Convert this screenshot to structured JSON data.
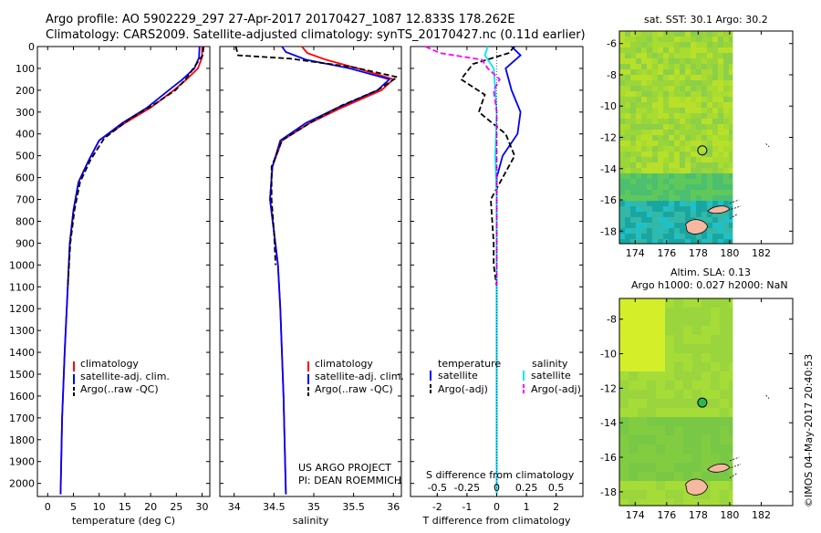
{
  "header": {
    "line1": "Argo profile: AO 5902229_297 27-Apr-2017 20170427_1087 12.833S 178.262E",
    "line2": "Climatology: CARS2009. Satellite-adjusted climatology: synTS_20170427.nc (0.11d earlier)"
  },
  "stamp": "©IMOS 04-May-2017 20:40:53",
  "colors": {
    "climatology": "#ff0000",
    "satellite": "#0000ff",
    "argo": "#000000",
    "sat_salinity": "#00e5ff",
    "argo_salinity": "#ff00ff"
  },
  "depth_ticks": [
    "0",
    "100",
    "200",
    "300",
    "400",
    "500",
    "600",
    "700",
    "800",
    "900",
    "1000",
    "1100",
    "1200",
    "1300",
    "1400",
    "1500",
    "1600",
    "1700",
    "1800",
    "1900",
    "2000"
  ],
  "chart_data": [
    {
      "type": "line",
      "xlabel": "temperature (deg C)",
      "xticks": [
        "0",
        "5",
        "10",
        "15",
        "20",
        "25",
        "30"
      ],
      "xlim": [
        -2,
        31.5
      ],
      "ylim": [
        2060,
        0
      ],
      "legend": [
        "climatology",
        "satellite-adj. clim.",
        "Argo(..raw -QC)"
      ],
      "series": [
        {
          "name": "climatology",
          "points": [
            [
              30,
              0
            ],
            [
              30,
              50
            ],
            [
              29.2,
              100
            ],
            [
              27,
              150
            ],
            [
              24.5,
              200
            ],
            [
              20,
              280
            ],
            [
              15,
              350
            ],
            [
              10,
              430
            ],
            [
              8,
              520
            ],
            [
              6,
              620
            ],
            [
              5,
              750
            ],
            [
              4.3,
              900
            ],
            [
              3.9,
              1100
            ],
            [
              3.3,
              1400
            ],
            [
              2.8,
              1700
            ],
            [
              2.5,
              2050
            ]
          ]
        },
        {
          "name": "satellite-adj. clim.",
          "points": [
            [
              29.5,
              0
            ],
            [
              29.4,
              50
            ],
            [
              28.5,
              100
            ],
            [
              26.2,
              150
            ],
            [
              23.5,
              200
            ],
            [
              19.3,
              280
            ],
            [
              14.5,
              350
            ],
            [
              10,
              430
            ],
            [
              8,
              520
            ],
            [
              6,
              620
            ],
            [
              5,
              750
            ],
            [
              4.3,
              900
            ],
            [
              3.9,
              1100
            ],
            [
              3.3,
              1400
            ],
            [
              2.8,
              1700
            ],
            [
              2.5,
              2050
            ]
          ]
        },
        {
          "name": "Argo(..raw -QC)",
          "points": [
            [
              30.3,
              0
            ],
            [
              30.1,
              40
            ],
            [
              28.3,
              100
            ],
            [
              26.8,
              150
            ],
            [
              24.8,
              200
            ],
            [
              21,
              260
            ],
            [
              16,
              330
            ],
            [
              11,
              420
            ],
            [
              8.3,
              520
            ],
            [
              6.3,
              620
            ],
            [
              5.2,
              750
            ],
            [
              4.4,
              900
            ],
            [
              3.9,
              1100
            ]
          ]
        }
      ]
    },
    {
      "type": "line",
      "xlabel": "salinity",
      "xticks": [
        "34",
        "34.5",
        "35",
        "35.5",
        "36"
      ],
      "xlim": [
        33.82,
        36.1
      ],
      "ylim": [
        2060,
        0
      ],
      "legend": [
        "climatology",
        "satellite-adj. clim.",
        "Argo(..raw -QC)"
      ],
      "annotation1": "US ARGO PROJECT",
      "annotation2": "PI: DEAN ROEMMICH",
      "series": [
        {
          "name": "climatology",
          "points": [
            [
              34.85,
              0
            ],
            [
              34.92,
              30
            ],
            [
              35.15,
              60
            ],
            [
              35.55,
              100
            ],
            [
              36.0,
              150
            ],
            [
              35.85,
              200
            ],
            [
              35.35,
              280
            ],
            [
              34.95,
              350
            ],
            [
              34.6,
              430
            ],
            [
              34.48,
              550
            ],
            [
              34.45,
              700
            ],
            [
              34.5,
              850
            ],
            [
              34.55,
              1000
            ],
            [
              34.58,
              1200
            ],
            [
              34.62,
              1600
            ],
            [
              34.65,
              2050
            ]
          ]
        },
        {
          "name": "satellite-adj. clim.",
          "points": [
            [
              34.6,
              0
            ],
            [
              34.65,
              25
            ],
            [
              34.9,
              60
            ],
            [
              35.45,
              100
            ],
            [
              35.95,
              150
            ],
            [
              35.8,
              200
            ],
            [
              35.3,
              280
            ],
            [
              34.9,
              350
            ],
            [
              34.58,
              430
            ],
            [
              34.48,
              550
            ],
            [
              34.45,
              700
            ],
            [
              34.5,
              850
            ],
            [
              34.55,
              1000
            ],
            [
              34.58,
              1200
            ],
            [
              34.62,
              1600
            ],
            [
              34.65,
              2050
            ]
          ]
        },
        {
          "name": "Argo(..raw -QC)",
          "points": [
            [
              34.02,
              0
            ],
            [
              34.05,
              40
            ],
            [
              34.7,
              55
            ],
            [
              35.5,
              95
            ],
            [
              36.05,
              140
            ],
            [
              35.8,
              200
            ],
            [
              35.35,
              270
            ],
            [
              34.95,
              350
            ],
            [
              34.6,
              430
            ],
            [
              34.47,
              550
            ],
            [
              34.47,
              700
            ],
            [
              34.5,
              850
            ],
            [
              34.52,
              1000
            ]
          ]
        }
      ]
    },
    {
      "type": "line",
      "xlabel": "T difference from climatology",
      "xticks": [
        "-2",
        "-1",
        "0",
        "1",
        "2"
      ],
      "xlim": [
        -2.9,
        2.9
      ],
      "ylim": [
        2060,
        0
      ],
      "s_label": "S difference from climatology",
      "s_ticks": [
        "-0.5",
        "-0.25",
        "0",
        "0.25",
        "0.5"
      ],
      "legend_titles": [
        "temperature",
        "salinity"
      ],
      "legend": [
        "satellite",
        "Argo(-adj)",
        "satellite",
        "Argo(-adj)"
      ],
      "series": [
        {
          "name": "satellite",
          "points": [
            [
              0.5,
              0
            ],
            [
              0.8,
              40
            ],
            [
              0.3,
              100
            ],
            [
              0.5,
              200
            ],
            [
              0.8,
              300
            ],
            [
              0.7,
              400
            ],
            [
              0.2,
              500
            ],
            [
              0,
              600
            ],
            [
              0,
              800
            ],
            [
              0,
              2050
            ]
          ]
        },
        {
          "name": "Argo(-adj)",
          "points": [
            [
              0.6,
              0
            ],
            [
              0.4,
              30
            ],
            [
              -0.8,
              80
            ],
            [
              -1.2,
              150
            ],
            [
              -0.4,
              220
            ],
            [
              -0.6,
              300
            ],
            [
              0.3,
              400
            ],
            [
              0.6,
              500
            ],
            [
              0.2,
              600
            ],
            [
              -0.2,
              700
            ],
            [
              -0.1,
              900
            ],
            [
              -0.1,
              1000
            ],
            [
              0,
              1100
            ]
          ]
        },
        {
          "name": "sat. salinity",
          "points": [
            [
              -0.3,
              0
            ],
            [
              -0.4,
              40
            ],
            [
              -0.1,
              100
            ],
            [
              -0.05,
              200
            ],
            [
              0.0,
              300
            ],
            [
              -0.05,
              500
            ],
            [
              0.0,
              700
            ],
            [
              0,
              2050
            ]
          ]
        },
        {
          "name": "Argo salinity",
          "points": [
            [
              -2.4,
              0
            ],
            [
              -1.9,
              30
            ],
            [
              -0.5,
              60
            ],
            [
              -0.3,
              100
            ],
            [
              0.1,
              150
            ],
            [
              -0.1,
              200
            ],
            [
              0,
              300
            ],
            [
              0,
              1100
            ]
          ]
        }
      ]
    },
    {
      "type": "heatmap",
      "title": "sat. SST: 30.1  Argo: 30.2",
      "xticks": [
        "174",
        "176",
        "178",
        "180",
        "182"
      ],
      "yticks": [
        "-6",
        "-8",
        "-10",
        "-12",
        "-14",
        "-16",
        "-18"
      ],
      "xlim": [
        173,
        184
      ],
      "ylim": [
        -18.8,
        -5.2
      ],
      "argo_position": [
        178.262,
        -12.833
      ]
    },
    {
      "type": "heatmap",
      "title_line1": "Altim. SLA: 0.13",
      "title_line2": "Argo h1000: 0.027 h2000: NaN",
      "xticks": [
        "174",
        "176",
        "178",
        "180",
        "182"
      ],
      "yticks": [
        "-8",
        "-10",
        "-12",
        "-14",
        "-16",
        "-18"
      ],
      "xlim": [
        173,
        184
      ],
      "ylim": [
        -18.8,
        -6.8
      ],
      "argo_position": [
        178.262,
        -12.833
      ]
    }
  ]
}
